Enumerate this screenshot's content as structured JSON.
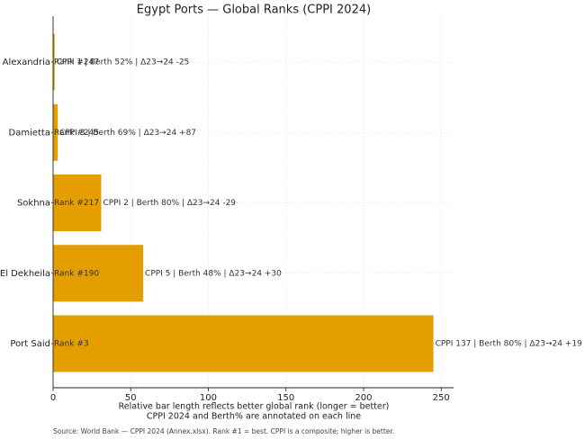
{
  "chart_data": {
    "type": "bar",
    "orientation": "horizontal",
    "title": "Egypt Ports — Global Ranks (CPPI 2024)",
    "categories": [
      "Alexandria",
      "Damietta",
      "Sokhna",
      "El Dekheila",
      "Port Said"
    ],
    "values": [
      1,
      3,
      31,
      58,
      245
    ],
    "rank_labels": [
      "Rank #247",
      "Rank #245",
      "Rank #217",
      "Rank #190",
      "Rank #3"
    ],
    "annotations": [
      "CPPI 1  |  Berth 52%  |  Δ23→24 -25",
      "CPPI 3  |  Berth 69%  |  Δ23→24 +87",
      "CPPI 2  |  Berth 80%  |  Δ23→24 -29",
      "CPPI 5  |  Berth 48%  |  Δ23→24 +30",
      "CPPI 137  |  Berth 80%  |  Δ23→24 +19"
    ],
    "color": "#e49e00",
    "xlim": [
      0,
      258
    ],
    "xticks": [
      0,
      50,
      100,
      150,
      200,
      250
    ],
    "grid": true,
    "xlabel": [
      "Relative bar length reflects better global rank (longer = better)",
      "CPPI 2024 and Berth% are annotated on each line"
    ],
    "source": "Source: World Bank — CPPI 2024 (Annex.xlsx). Rank #1 = best. CPPI is a composite; higher is better."
  }
}
